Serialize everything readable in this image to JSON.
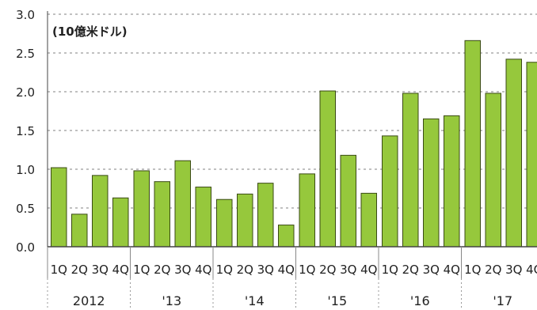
{
  "chart_data": {
    "type": "bar",
    "unit_label": "(10億米ドル)",
    "ylim": [
      0,
      3.0
    ],
    "yticks": [
      "0.0",
      "0.5",
      "1.0",
      "1.5",
      "2.0",
      "2.5",
      "3.0"
    ],
    "grid": true,
    "bar_color": "#96c83c",
    "bar_edge_color": "#3a4a14",
    "quarter_labels": [
      "1Q",
      "2Q",
      "3Q",
      "4Q"
    ],
    "years": [
      "2012",
      "'13",
      "'14",
      "'15",
      "'16",
      "'17"
    ],
    "values": [
      [
        1.02,
        0.42,
        0.92,
        0.63
      ],
      [
        0.98,
        0.84,
        1.11,
        0.77
      ],
      [
        0.61,
        0.68,
        0.82,
        0.28
      ],
      [
        0.94,
        2.01,
        1.18,
        0.69
      ],
      [
        1.43,
        1.98,
        1.65,
        1.69
      ],
      [
        2.66,
        1.98,
        2.42,
        2.38
      ]
    ]
  }
}
